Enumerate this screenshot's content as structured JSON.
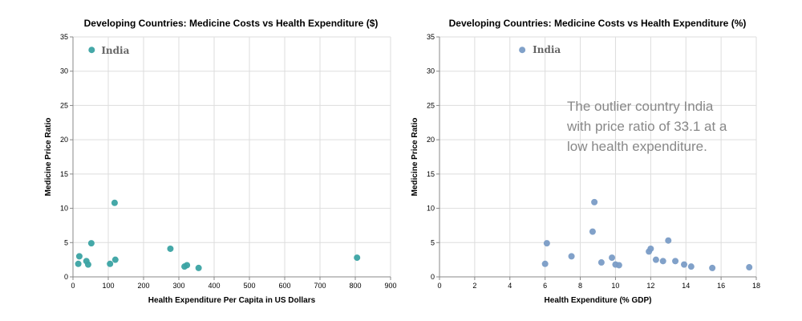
{
  "chart_data": [
    {
      "type": "scatter",
      "title": "Developing Countries: Medicine Costs vs Health Expenditure ($)",
      "xlabel": "Health Expenditure Per Capita in US Dollars",
      "ylabel": "Medicine Price Ratio",
      "xlim": [
        0,
        900
      ],
      "ylim": [
        0,
        35
      ],
      "xticks": [
        0,
        100,
        200,
        300,
        400,
        500,
        600,
        700,
        800,
        900
      ],
      "yticks": [
        0,
        5,
        10,
        15,
        20,
        25,
        30,
        35
      ],
      "grid": true,
      "color": "#3ba3a3",
      "points": [
        {
          "x": 53,
          "y": 33.1
        },
        {
          "x": 18,
          "y": 3.0
        },
        {
          "x": 15,
          "y": 1.9
        },
        {
          "x": 38,
          "y": 2.3
        },
        {
          "x": 43,
          "y": 1.8
        },
        {
          "x": 52,
          "y": 4.9
        },
        {
          "x": 105,
          "y": 1.9
        },
        {
          "x": 120,
          "y": 2.5
        },
        {
          "x": 118,
          "y": 10.8
        },
        {
          "x": 276,
          "y": 4.1
        },
        {
          "x": 316,
          "y": 1.5
        },
        {
          "x": 323,
          "y": 1.7
        },
        {
          "x": 356,
          "y": 1.3
        },
        {
          "x": 805,
          "y": 2.8
        }
      ],
      "labels": [
        {
          "text": "India",
          "x": 53,
          "y": 33.1
        }
      ]
    },
    {
      "type": "scatter",
      "title": "Developing Countries: Medicine Costs vs Health Expenditure (%)",
      "xlabel": "Health Expenditure (% GDP)",
      "ylabel": "Medicine Price Ratio",
      "xlim": [
        0,
        18
      ],
      "ylim": [
        0,
        35
      ],
      "xticks": [
        0,
        2,
        4,
        6,
        8,
        10,
        12,
        14,
        16,
        18
      ],
      "yticks": [
        0,
        5,
        10,
        15,
        20,
        25,
        30,
        35
      ],
      "grid": true,
      "color": "#7a9cc6",
      "points": [
        {
          "x": 4.7,
          "y": 33.1
        },
        {
          "x": 6.1,
          "y": 4.9
        },
        {
          "x": 6.0,
          "y": 1.9
        },
        {
          "x": 7.5,
          "y": 3.0
        },
        {
          "x": 8.7,
          "y": 6.6
        },
        {
          "x": 8.8,
          "y": 10.9
        },
        {
          "x": 9.2,
          "y": 2.1
        },
        {
          "x": 9.8,
          "y": 2.8
        },
        {
          "x": 10.0,
          "y": 1.8
        },
        {
          "x": 10.2,
          "y": 1.7
        },
        {
          "x": 11.9,
          "y": 3.7
        },
        {
          "x": 12.0,
          "y": 4.1
        },
        {
          "x": 12.3,
          "y": 2.5
        },
        {
          "x": 12.7,
          "y": 2.3
        },
        {
          "x": 13.0,
          "y": 5.3
        },
        {
          "x": 13.4,
          "y": 2.3
        },
        {
          "x": 13.9,
          "y": 1.8
        },
        {
          "x": 14.3,
          "y": 1.5
        },
        {
          "x": 15.5,
          "y": 1.3
        },
        {
          "x": 17.6,
          "y": 1.4
        }
      ],
      "labels": [
        {
          "text": "India",
          "x": 4.7,
          "y": 33.1
        }
      ],
      "annotation": [
        "The outlier country India",
        "with price ratio of 33.1 at a",
        "low health expenditure."
      ]
    }
  ]
}
